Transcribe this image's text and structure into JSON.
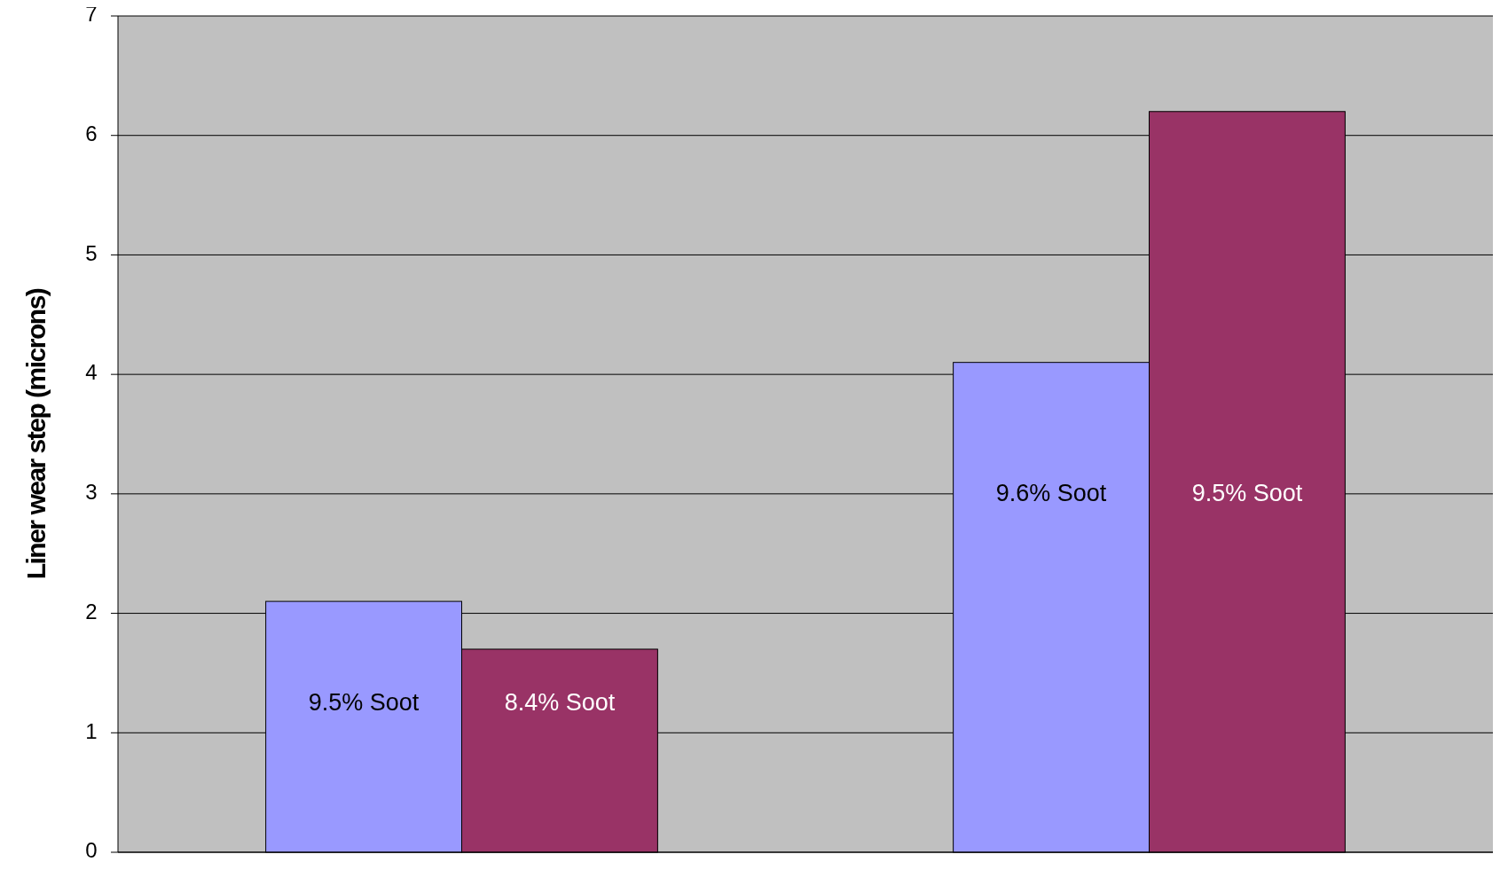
{
  "chart_data": {
    "type": "bar",
    "ylabel": "Liner wear step (microns)",
    "categories": [
      null,
      null
    ],
    "series": [
      {
        "color": "#9999ff",
        "values": [
          2.1,
          4.1
        ]
      },
      {
        "color": "#993366",
        "values": [
          1.7,
          6.2
        ]
      }
    ],
    "annotations": [
      "9.5% Soot",
      "8.4% Soot",
      "9.6% Soot",
      "9.5% Soot"
    ],
    "ylim": [
      0,
      7
    ],
    "yticks": [
      0,
      1,
      2,
      3,
      4,
      5,
      6,
      7
    ],
    "grid": "y"
  }
}
